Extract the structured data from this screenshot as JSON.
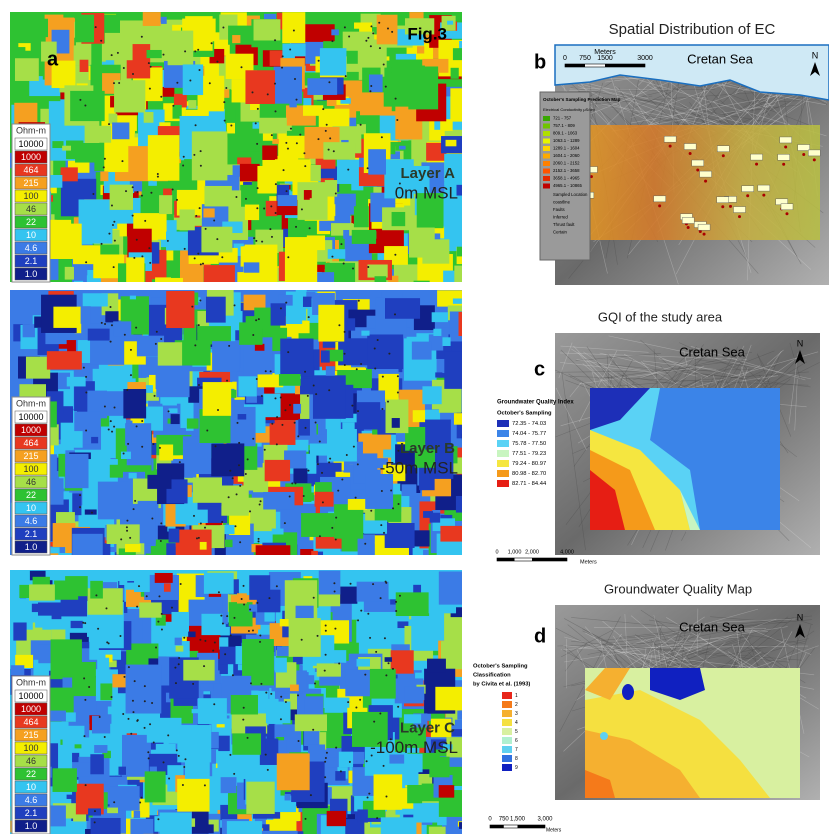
{
  "figure_label": "Fig.3",
  "panel_a": {
    "label": "a",
    "legend_title": "Ohm-m",
    "legend": [
      {
        "label": "10000",
        "color": "#ffffff"
      },
      {
        "label": "1000",
        "color": "#c00000"
      },
      {
        "label": "464",
        "color": "#e8381f"
      },
      {
        "label": "215",
        "color": "#f5a020"
      },
      {
        "label": "100",
        "color": "#f4ee00"
      },
      {
        "label": "46",
        "color": "#a6df48"
      },
      {
        "label": "22",
        "color": "#2ec232"
      },
      {
        "label": "10",
        "color": "#34c4f0"
      },
      {
        "label": "4.6",
        "color": "#3b7be6"
      },
      {
        "label": "2.1",
        "color": "#1f3fbf"
      },
      {
        "label": "1.0",
        "color": "#101f8a"
      }
    ],
    "layers": [
      {
        "name": "Layer A",
        "depth": "0m MSL"
      },
      {
        "name": "Layer B",
        "depth": "-50m MSL"
      },
      {
        "name": "Layer C",
        "depth": "-100m MSL"
      }
    ]
  },
  "panel_b": {
    "label": "b",
    "title": "Spatial Distribution of EC",
    "sea": "Cretan Sea",
    "north": "N",
    "scale_unit": "Meters",
    "scale_ticks": [
      "0",
      "750",
      "1500",
      "3000"
    ],
    "legend_title": "October's Sampling Prediction Map",
    "legend_subtitle": "Electrical Conductivity μS/cm",
    "legend": [
      {
        "label": "721 - 757",
        "color": "#38a800"
      },
      {
        "label": "757.1 - 809",
        "color": "#6fc400"
      },
      {
        "label": "809.1 - 1063",
        "color": "#b0e000"
      },
      {
        "label": "1063.1 - 1289",
        "color": "#e6f500"
      },
      {
        "label": "1289.1 - 1604",
        "color": "#ffd500"
      },
      {
        "label": "1604.1 - 2060",
        "color": "#ffaa00"
      },
      {
        "label": "2060.1 - 2152",
        "color": "#ff8000"
      },
      {
        "label": "2152.1 - 3658",
        "color": "#ff5500"
      },
      {
        "label": "3658.1 - 4965",
        "color": "#e62a00"
      },
      {
        "label": "4965.1 - 10865",
        "color": "#c00000"
      }
    ],
    "extras": [
      "Sampled Location",
      "coastline",
      "Faults",
      "Inferred",
      "Thrust fault",
      "Certain"
    ]
  },
  "panel_c": {
    "label": "c",
    "title": "GQI of the study area",
    "sea": "Cretan Sea",
    "north": "N",
    "legend_title": "Groundwater Quality Index",
    "legend_subtitle": "October's Sampling",
    "legend": [
      {
        "label": "72.35 - 74.03",
        "color": "#1d2fb8"
      },
      {
        "label": "74.04 - 75.77",
        "color": "#3b84e8"
      },
      {
        "label": "75.78 - 77.50",
        "color": "#5ad2f5"
      },
      {
        "label": "77.51 - 79.23",
        "color": "#c8f5c0"
      },
      {
        "label": "79.24 - 80.97",
        "color": "#f5e640"
      },
      {
        "label": "80.98 - 82.70",
        "color": "#f59a1a"
      },
      {
        "label": "82.71 - 84.44",
        "color": "#e61e14"
      }
    ],
    "scale_ticks": [
      "0",
      "1,000",
      "2,000",
      "4,000"
    ],
    "scale_unit": "Meters"
  },
  "panel_d": {
    "label": "d",
    "title": "Groundwater Quality Map",
    "sea": "Cretan Sea",
    "north": "N",
    "legend_title": "October's Sampling",
    "legend_subtitle": "Classification",
    "legend_note": "by Civita et al. (1993)",
    "legend": [
      {
        "label": "1",
        "color": "#e8261a"
      },
      {
        "label": "2",
        "color": "#f57a1a"
      },
      {
        "label": "3",
        "color": "#f5b030"
      },
      {
        "label": "4",
        "color": "#f5e040"
      },
      {
        "label": "5",
        "color": "#d8f0a0"
      },
      {
        "label": "6",
        "color": "#b0f0d0"
      },
      {
        "label": "7",
        "color": "#60d0f0"
      },
      {
        "label": "8",
        "color": "#3070e0"
      },
      {
        "label": "9",
        "color": "#1020c0"
      }
    ],
    "scale_ticks": [
      "0",
      "750",
      "1,500",
      "3,000"
    ],
    "scale_unit": "Meters"
  }
}
